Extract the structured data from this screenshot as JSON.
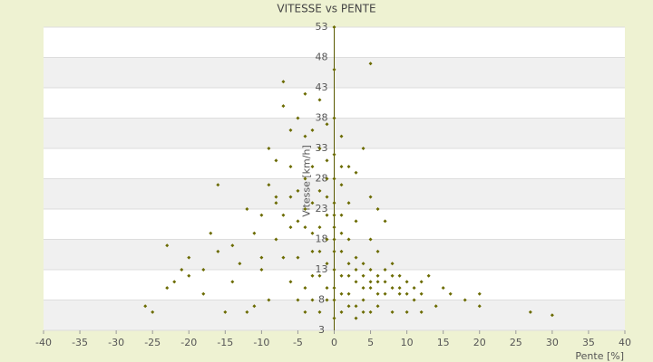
{
  "chart_data": {
    "type": "scatter",
    "title": "VITESSE vs PENTE",
    "x_label": "Pente [%]",
    "y_label": "Vitesse [km/h]",
    "color": "#6b6b00",
    "xlim": [
      -40,
      40
    ],
    "xticks": [
      -40,
      -35,
      -30,
      -25,
      -20,
      -15,
      -10,
      -5,
      0,
      5,
      10,
      15,
      20,
      25,
      30,
      35,
      40
    ],
    "ylim": [
      3,
      53
    ],
    "yticks": [
      3,
      8,
      13,
      18,
      23,
      28,
      33,
      38,
      43,
      48,
      53
    ],
    "grid": true,
    "x": [
      -26,
      -25,
      -23,
      -23,
      -22,
      -21,
      -20,
      -20,
      -18,
      -18,
      -17,
      -16,
      -15,
      -14,
      -14,
      -13,
      -12,
      -11,
      -10,
      -10,
      -9,
      -9,
      -8,
      -8,
      -7,
      -7,
      -6,
      -6,
      -5,
      -5,
      -4,
      -4,
      -3,
      -3,
      -2,
      -2,
      -1,
      -1,
      0,
      0,
      0,
      1,
      1,
      2,
      3,
      4,
      5,
      5,
      6,
      7,
      -16,
      -12,
      -10,
      -8,
      -6,
      -5,
      -4,
      -3,
      -2,
      -1,
      0,
      1,
      2,
      3,
      4,
      5,
      6,
      7,
      8,
      9,
      10,
      11,
      12,
      13,
      14,
      15,
      16,
      18,
      20,
      20,
      27,
      30,
      -2,
      -1,
      0,
      0,
      0,
      1,
      1,
      1,
      2,
      2,
      2,
      3,
      3,
      3,
      4,
      4,
      4,
      5,
      5,
      6,
      6,
      7,
      7,
      8,
      9,
      9,
      10,
      11,
      12,
      -1,
      -1,
      -1,
      -1,
      0,
      0,
      0,
      0,
      0,
      0,
      -2,
      -2,
      -2,
      -3,
      -3,
      -4,
      -4,
      -5,
      -6,
      -7,
      -8,
      -3,
      1,
      1,
      2,
      3,
      4,
      5,
      6,
      8,
      10,
      12,
      -6,
      -9,
      -11,
      -4,
      -5,
      2,
      3,
      1,
      -1,
      0,
      -3,
      -4,
      5,
      6,
      8,
      -7
    ],
    "y": [
      7,
      6,
      17,
      10,
      11,
      13,
      15,
      12,
      9,
      13,
      19,
      16,
      6,
      17,
      11,
      14,
      6,
      19,
      15,
      22,
      27,
      33,
      31,
      25,
      44,
      40,
      36,
      30,
      38,
      26,
      42,
      35,
      30,
      24,
      41,
      33,
      37,
      28,
      53,
      46,
      32,
      35,
      27,
      30,
      29,
      33,
      47,
      25,
      23,
      21,
      27,
      23,
      13,
      18,
      20,
      15,
      10,
      12,
      6,
      8,
      5,
      6,
      9,
      7,
      8,
      10,
      11,
      9,
      12,
      10,
      9,
      8,
      11,
      12,
      7,
      10,
      9,
      8,
      9,
      7,
      6,
      5.5,
      20,
      22,
      24,
      20,
      18,
      22,
      19,
      16,
      18,
      14,
      12,
      15,
      13,
      11,
      14,
      12,
      10,
      13,
      11,
      12,
      9,
      13,
      11,
      10,
      9,
      12,
      11,
      10,
      9,
      25,
      18,
      14,
      10,
      28,
      22,
      16,
      13,
      10,
      8,
      26,
      16,
      12,
      19,
      16,
      20,
      23,
      21,
      25,
      22,
      24,
      8,
      12,
      9,
      7,
      5,
      6,
      6,
      7,
      6,
      6,
      6,
      11,
      8,
      7,
      6,
      8,
      24,
      21,
      30,
      31,
      38,
      36,
      28,
      18,
      16,
      14,
      15
    ]
  }
}
